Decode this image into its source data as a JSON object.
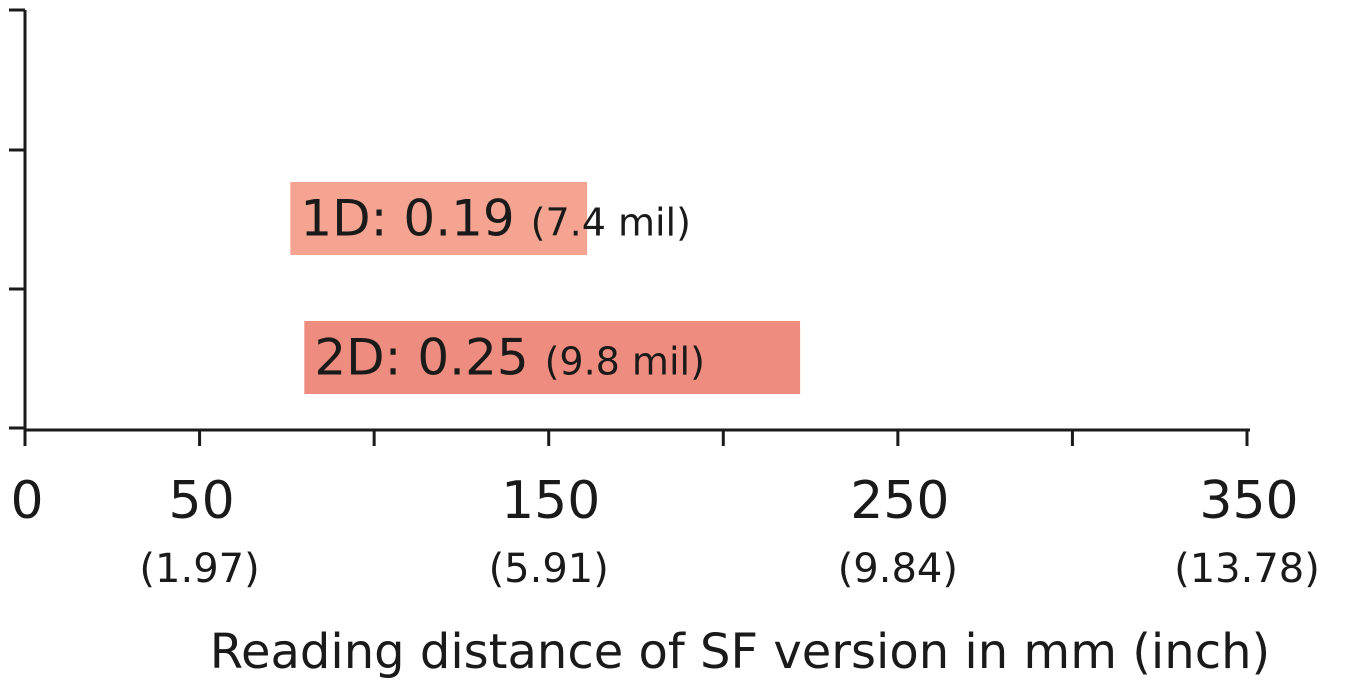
{
  "chart_data": {
    "type": "bar",
    "orientation": "horizontal",
    "xlabel": "Reading distance of SF version in mm (inch)",
    "xlim": [
      0,
      350
    ],
    "grid": false,
    "x_ticks": [
      0,
      50,
      100,
      150,
      200,
      250,
      300,
      350
    ],
    "x_tick_labels": [
      {
        "value": 0,
        "main": "0",
        "sub": ""
      },
      {
        "value": 50,
        "main": "50",
        "sub": "(1.97)"
      },
      {
        "value": 150,
        "main": "150",
        "sub": "(5.91)"
      },
      {
        "value": 250,
        "main": "250",
        "sub": "(9.84)"
      },
      {
        "value": 350,
        "main": "350",
        "sub": "(13.78)"
      }
    ],
    "bars": [
      {
        "main": "1D: 0.19",
        "sub": "(7.4 mil)",
        "start": 76,
        "end": 161,
        "color": "#f4a491"
      },
      {
        "main": "2D: 0.25",
        "sub": "(9.8 mil)",
        "start": 80,
        "end": 222,
        "color": "#ee8c7f"
      }
    ]
  },
  "colors": {
    "axis": "#1a1a1a",
    "text": "#1a1a1a"
  }
}
